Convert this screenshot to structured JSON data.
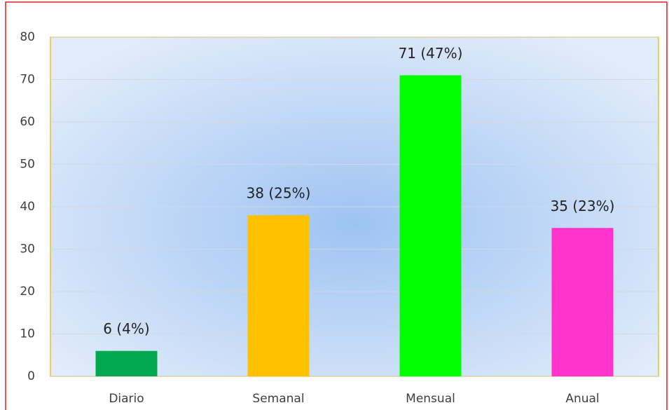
{
  "chart_data": {
    "type": "bar",
    "categories": [
      "Diario",
      "Semanal",
      "Mensual",
      "Anual"
    ],
    "values": [
      6,
      38,
      71,
      35
    ],
    "value_labels": [
      "6 (4%)",
      "38 (25%)",
      "71 (47%)",
      "35 (23%)"
    ],
    "colors": [
      "#00a84f",
      "#ffc000",
      "#00ff00",
      "#ff33cc"
    ],
    "ylim": [
      0,
      80
    ],
    "yticks": [
      0,
      10,
      20,
      30,
      40,
      50,
      60,
      70,
      80
    ],
    "grid": true
  }
}
